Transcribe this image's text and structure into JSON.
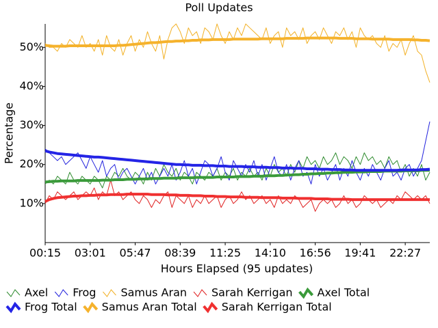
{
  "chart_data": {
    "type": "line",
    "title": "Poll Updates",
    "x_label": "Hours Elapsed (95 updates)",
    "y_label": "Percentage",
    "categories": [
      "00:15",
      null,
      null,
      null,
      null,
      null,
      null,
      null,
      null,
      null,
      null,
      "03:01",
      null,
      null,
      null,
      null,
      null,
      null,
      null,
      null,
      null,
      null,
      "05:47",
      null,
      null,
      null,
      null,
      null,
      null,
      null,
      null,
      null,
      null,
      "08:39",
      null,
      null,
      null,
      null,
      null,
      null,
      null,
      null,
      null,
      null,
      "11:25",
      null,
      null,
      null,
      null,
      null,
      null,
      null,
      null,
      null,
      null,
      "14:10",
      null,
      null,
      null,
      null,
      null,
      null,
      null,
      null,
      null,
      null,
      "16:56",
      null,
      null,
      null,
      null,
      null,
      null,
      null,
      null,
      null,
      null,
      "19:41",
      null,
      null,
      null,
      null,
      null,
      null,
      null,
      null,
      null,
      null,
      "22:27",
      null,
      null,
      null,
      null,
      null,
      null
    ],
    "ylim": [
      0,
      56
    ],
    "yticks": [
      {
        "value": 10,
        "label": "10%"
      },
      {
        "value": 20,
        "label": "20%"
      },
      {
        "value": 30,
        "label": "30%"
      },
      {
        "value": 40,
        "label": "40%"
      },
      {
        "value": 50,
        "label": "50%"
      }
    ],
    "series": [
      {
        "name": "Axel",
        "color": "#2e8b2e",
        "width": 1,
        "values": [
          15,
          16,
          15,
          17,
          16,
          15,
          18,
          16,
          15,
          17,
          16,
          15,
          17,
          16,
          14,
          17,
          16,
          18,
          17,
          19,
          17,
          16,
          18,
          17,
          15,
          18,
          16,
          19,
          17,
          20,
          18,
          17,
          19,
          16,
          18,
          17,
          15,
          18,
          17,
          16,
          18,
          17,
          19,
          16,
          18,
          17,
          19,
          16,
          18,
          17,
          19,
          17,
          18,
          16,
          19,
          17,
          20,
          18,
          19,
          17,
          20,
          18,
          21,
          19,
          22,
          20,
          21,
          19,
          22,
          20,
          21,
          23,
          20,
          22,
          21,
          19,
          22,
          20,
          23,
          21,
          22,
          20,
          21,
          19,
          22,
          20,
          21,
          18,
          20,
          17,
          19,
          17,
          20,
          16,
          18
        ]
      },
      {
        "name": "Frog",
        "color": "#2222dd",
        "width": 1,
        "values": [
          24,
          23,
          22,
          21,
          22,
          20,
          21,
          22,
          23,
          21,
          19,
          22,
          20,
          18,
          21,
          17,
          19,
          20,
          16,
          18,
          19,
          17,
          15,
          17,
          19,
          16,
          18,
          15,
          17,
          19,
          17,
          20,
          16,
          18,
          21,
          17,
          19,
          15,
          18,
          21,
          20,
          17,
          19,
          22,
          18,
          16,
          21,
          19,
          17,
          20,
          18,
          21,
          17,
          20,
          16,
          19,
          22,
          18,
          17,
          20,
          16,
          19,
          21,
          17,
          18,
          15,
          20,
          17,
          19,
          16,
          18,
          20,
          16,
          19,
          17,
          21,
          18,
          16,
          19,
          17,
          20,
          18,
          16,
          19,
          21,
          17,
          18,
          16,
          19,
          20,
          17,
          19,
          21,
          26,
          31
        ]
      },
      {
        "name": "Samus Aran",
        "color": "#f2b024",
        "width": 1,
        "values": [
          51,
          50,
          50,
          49,
          51,
          50,
          52,
          51,
          50,
          53,
          50,
          51,
          49,
          52,
          48,
          53,
          50,
          49,
          52,
          48,
          51,
          53,
          49,
          52,
          50,
          54,
          51,
          49,
          53,
          47,
          52,
          55,
          56,
          54,
          51,
          55,
          53,
          54,
          51,
          55,
          54,
          52,
          56,
          53,
          51,
          54,
          52,
          55,
          53,
          56,
          55,
          54,
          53,
          52,
          55,
          51,
          53,
          54,
          50,
          55,
          53,
          54,
          52,
          55,
          51,
          53,
          54,
          52,
          55,
          53,
          51,
          54,
          53,
          55,
          52,
          54,
          50,
          55,
          53,
          52,
          53,
          51,
          50,
          53,
          49,
          51,
          50,
          52,
          48,
          51,
          53,
          49,
          48,
          44,
          41
        ]
      },
      {
        "name": "Sarah Kerrigan",
        "color": "#e02222",
        "width": 1,
        "values": [
          10,
          12,
          11,
          13,
          12,
          11,
          12,
          13,
          11,
          12,
          13,
          12,
          14,
          11,
          13,
          12,
          16,
          12,
          13,
          11,
          12,
          13,
          11,
          10,
          12,
          11,
          9,
          11,
          10,
          12,
          13,
          9,
          12,
          11,
          10,
          12,
          9,
          11,
          10,
          12,
          10,
          11,
          12,
          9,
          11,
          12,
          10,
          11,
          13,
          11,
          12,
          10,
          11,
          12,
          10,
          11,
          9,
          12,
          10,
          11,
          10,
          12,
          11,
          9,
          10,
          11,
          8,
          10,
          11,
          10,
          11,
          9,
          10,
          12,
          10,
          11,
          9,
          10,
          12,
          11,
          10,
          11,
          9,
          10,
          11,
          10,
          12,
          11,
          13,
          12,
          11,
          12,
          11,
          12,
          10
        ]
      },
      {
        "name": "Axel Total",
        "color": "#3a9a3a",
        "width": 4,
        "values": [
          15.5,
          15.6,
          15.7,
          15.7,
          15.8,
          15.8,
          15.8,
          15.8,
          15.9,
          15.9,
          15.9,
          15.9,
          15.9,
          15.9,
          16.0,
          16.0,
          16.0,
          16.1,
          16.1,
          16.1,
          16.2,
          16.2,
          16.2,
          16.3,
          16.3,
          16.3,
          16.4,
          16.4,
          16.4,
          16.5,
          16.5,
          16.5,
          16.5,
          16.6,
          16.6,
          16.6,
          16.6,
          16.7,
          16.7,
          16.7,
          16.7,
          16.7,
          16.8,
          16.8,
          16.8,
          16.8,
          16.8,
          16.9,
          16.9,
          16.9,
          16.9,
          17.0,
          17.0,
          17.0,
          17.1,
          17.1,
          17.1,
          17.2,
          17.2,
          17.3,
          17.3,
          17.4,
          17.4,
          17.5,
          17.5,
          17.6,
          17.6,
          17.7,
          17.7,
          17.8,
          17.8,
          17.9,
          17.9,
          18.0,
          18.0,
          18.0,
          18.1,
          18.1,
          18.1,
          18.2,
          18.2,
          18.2,
          18.2,
          18.3,
          18.3,
          18.3,
          18.3,
          18.3,
          18.4,
          18.4,
          18.4,
          18.4,
          18.5,
          18.5,
          18.5
        ]
      },
      {
        "name": "Frog Total",
        "color": "#2424e6",
        "width": 4,
        "values": [
          23.5,
          23.2,
          23.0,
          22.8,
          22.7,
          22.6,
          22.5,
          22.4,
          22.3,
          22.2,
          22.1,
          22.0,
          21.9,
          21.9,
          21.8,
          21.7,
          21.6,
          21.5,
          21.4,
          21.3,
          21.2,
          21.1,
          21.0,
          20.9,
          20.8,
          20.7,
          20.6,
          20.5,
          20.4,
          20.3,
          20.2,
          20.1,
          20.0,
          20.0,
          19.9,
          19.9,
          19.8,
          19.8,
          19.8,
          19.7,
          19.7,
          19.7,
          19.6,
          19.6,
          19.6,
          19.5,
          19.5,
          19.5,
          19.5,
          19.4,
          19.4,
          19.4,
          19.3,
          19.3,
          19.3,
          19.2,
          19.2,
          19.2,
          19.1,
          19.1,
          19.1,
          19.0,
          19.0,
          19.0,
          18.9,
          18.9,
          18.9,
          18.8,
          18.8,
          18.8,
          18.7,
          18.7,
          18.7,
          18.6,
          18.6,
          18.6,
          18.5,
          18.5,
          18.5,
          18.5,
          18.5,
          18.5,
          18.5,
          18.5,
          18.5,
          18.5,
          18.5,
          18.6,
          18.6,
          18.6,
          18.6,
          18.6,
          18.7,
          18.7,
          18.8
        ]
      },
      {
        "name": "Samus Aran Total",
        "color": "#f5b22c",
        "width": 4,
        "values": [
          50.5,
          50.4,
          50.3,
          50.3,
          50.3,
          50.3,
          50.4,
          50.4,
          50.4,
          50.4,
          50.4,
          50.4,
          50.4,
          50.4,
          50.4,
          50.4,
          50.4,
          50.4,
          50.5,
          50.5,
          50.6,
          50.7,
          50.8,
          50.9,
          51.0,
          51.1,
          51.2,
          51.2,
          51.3,
          51.4,
          51.5,
          51.5,
          51.6,
          51.6,
          51.7,
          51.7,
          51.8,
          51.8,
          51.9,
          51.9,
          51.9,
          52.0,
          52.0,
          52.0,
          52.0,
          52.0,
          52.1,
          52.1,
          52.1,
          52.1,
          52.1,
          52.1,
          52.1,
          52.2,
          52.2,
          52.2,
          52.2,
          52.2,
          52.2,
          52.3,
          52.3,
          52.3,
          52.3,
          52.3,
          52.4,
          52.4,
          52.4,
          52.4,
          52.4,
          52.4,
          52.4,
          52.4,
          52.3,
          52.3,
          52.3,
          52.3,
          52.2,
          52.2,
          52.2,
          52.2,
          52.1,
          52.1,
          52.1,
          52.1,
          52.1,
          52.0,
          52.0,
          52.0,
          52.0,
          52.0,
          51.9,
          51.9,
          51.8,
          51.8,
          51.7
        ]
      },
      {
        "name": "Sarah Kerrigan Total",
        "color": "#f03030",
        "width": 4,
        "values": [
          10.5,
          11.0,
          11.3,
          11.5,
          11.6,
          11.7,
          11.8,
          11.9,
          11.9,
          12.0,
          12.0,
          12.1,
          12.1,
          12.2,
          12.2,
          12.2,
          12.3,
          12.3,
          12.3,
          12.3,
          12.4,
          12.4,
          12.4,
          12.4,
          12.4,
          12.4,
          12.3,
          12.3,
          12.3,
          12.3,
          12.2,
          12.2,
          12.2,
          12.1,
          12.1,
          12.1,
          12.0,
          12.0,
          12.0,
          11.9,
          11.9,
          11.9,
          11.8,
          11.8,
          11.8,
          11.7,
          11.7,
          11.7,
          11.7,
          11.6,
          11.6,
          11.6,
          11.6,
          11.5,
          11.5,
          11.5,
          11.5,
          11.5,
          11.4,
          11.4,
          11.4,
          11.4,
          11.3,
          11.3,
          11.3,
          11.3,
          11.2,
          11.2,
          11.2,
          11.2,
          11.1,
          11.1,
          11.1,
          11.1,
          11.1,
          11.0,
          11.0,
          11.0,
          11.0,
          11.0,
          11.0,
          11.0,
          11.0,
          11.0,
          11.0,
          11.0,
          11.0,
          11.0,
          11.0,
          11.0,
          11.0,
          11.0,
          11.0,
          11.0,
          11.0
        ]
      }
    ]
  }
}
